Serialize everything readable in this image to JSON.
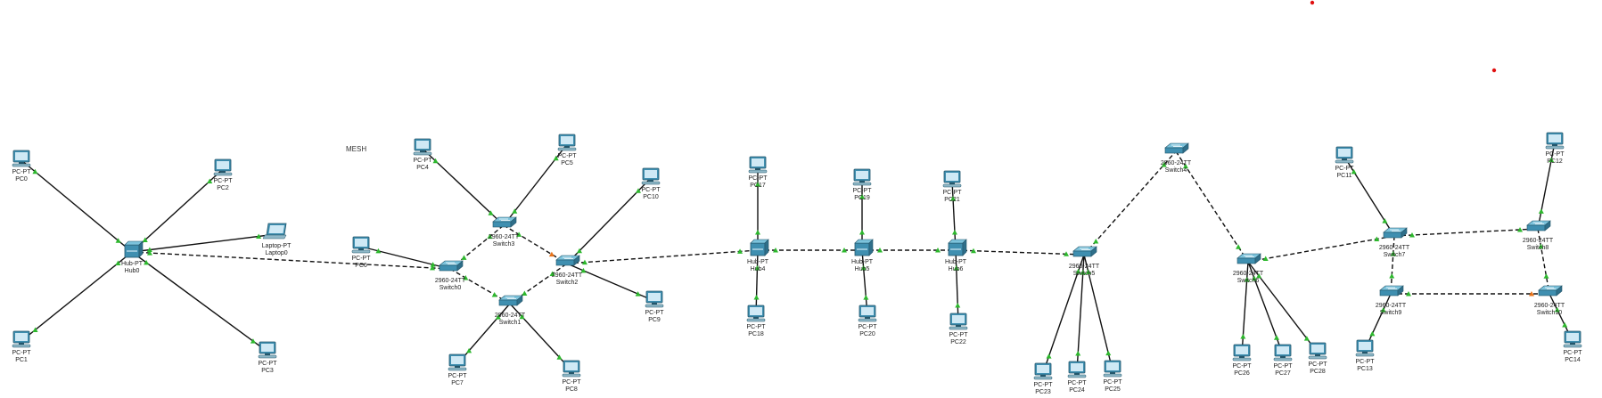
{
  "canvas_label": "MESH",
  "colors": {
    "link": "#111111",
    "port_up": "#2db82d",
    "port_down": "#e8731a",
    "marker": "#e01010",
    "device_body": "#3f8fb0",
    "device_top": "#7cc3dc",
    "screen": "#cfe9f5"
  },
  "devices": [
    {
      "id": "PC0",
      "type": "pc",
      "model": "PC-PT",
      "name": "PC0"
    },
    {
      "id": "PC1",
      "type": "pc",
      "model": "PC-PT",
      "name": "PC1"
    },
    {
      "id": "PC2",
      "type": "pc",
      "model": "PC-PT",
      "name": "PC2"
    },
    {
      "id": "PC3",
      "type": "pc",
      "model": "PC-PT",
      "name": "PC3"
    },
    {
      "id": "Laptop0",
      "type": "laptop",
      "model": "Laptop-PT",
      "name": "Laptop0"
    },
    {
      "id": "Hub0",
      "type": "hub",
      "model": "Hub-PT",
      "name": "Hub0"
    },
    {
      "id": "PC6",
      "type": "pc",
      "model": "PC-PT",
      "name": "PC6"
    },
    {
      "id": "PC4",
      "type": "pc",
      "model": "PC-PT",
      "name": "PC4"
    },
    {
      "id": "PC5",
      "type": "pc",
      "model": "PC-PT",
      "name": "PC5"
    },
    {
      "id": "PC7",
      "type": "pc",
      "model": "PC-PT",
      "name": "PC7"
    },
    {
      "id": "PC8",
      "type": "pc",
      "model": "PC-PT",
      "name": "PC8"
    },
    {
      "id": "PC9",
      "type": "pc",
      "model": "PC-PT",
      "name": "PC9"
    },
    {
      "id": "PC10",
      "type": "pc",
      "model": "PC-PT",
      "name": "PC10"
    },
    {
      "id": "Switch0",
      "type": "switch",
      "model": "2960-24TT",
      "name": "Switch0"
    },
    {
      "id": "Switch1",
      "type": "switch",
      "model": "2960-24TT",
      "name": "Switch1"
    },
    {
      "id": "Switch2",
      "type": "switch",
      "model": "2960-24TT",
      "name": "Switch2"
    },
    {
      "id": "Switch3",
      "type": "switch",
      "model": "2960-24TT",
      "name": "Switch3"
    },
    {
      "id": "PC17",
      "type": "pc",
      "model": "PC-PT",
      "name": "PC17"
    },
    {
      "id": "PC18",
      "type": "pc",
      "model": "PC-PT",
      "name": "PC18"
    },
    {
      "id": "Hub4",
      "type": "hub",
      "model": "Hub-PT",
      "name": "Hub4"
    },
    {
      "id": "PC19",
      "type": "pc",
      "model": "PC-PT",
      "name": "PC19"
    },
    {
      "id": "PC20",
      "type": "pc",
      "model": "PC-PT",
      "name": "PC20"
    },
    {
      "id": "Hub5",
      "type": "hub",
      "model": "Hub-PT",
      "name": "Hub5"
    },
    {
      "id": "PC21",
      "type": "pc",
      "model": "PC-PT",
      "name": "PC21"
    },
    {
      "id": "PC22",
      "type": "pc",
      "model": "PC-PT",
      "name": "PC22"
    },
    {
      "id": "Hub6",
      "type": "hub",
      "model": "Hub-PT",
      "name": "Hub6"
    },
    {
      "id": "Switch4",
      "type": "switch",
      "model": "2960-24TT",
      "name": "Switch4"
    },
    {
      "id": "Switch5",
      "type": "switch",
      "model": "2960-24TT",
      "name": "Switch5"
    },
    {
      "id": "PC23",
      "type": "pc",
      "model": "PC-PT",
      "name": "PC23"
    },
    {
      "id": "PC24",
      "type": "pc",
      "model": "PC-PT",
      "name": "PC24"
    },
    {
      "id": "PC25",
      "type": "pc",
      "model": "PC-PT",
      "name": "PC25"
    },
    {
      "id": "Switch6",
      "type": "switch",
      "model": "2960-24TT",
      "name": "Switch6"
    },
    {
      "id": "PC26",
      "type": "pc",
      "model": "PC-PT",
      "name": "PC26"
    },
    {
      "id": "PC27",
      "type": "pc",
      "model": "PC-PT",
      "name": "PC27"
    },
    {
      "id": "PC28",
      "type": "pc",
      "model": "PC-PT",
      "name": "PC28"
    },
    {
      "id": "PC11",
      "type": "pc",
      "model": "PC-PT",
      "name": "PC11"
    },
    {
      "id": "Switch7",
      "type": "switch",
      "model": "2960-24TT",
      "name": "Switch7"
    },
    {
      "id": "Switch8",
      "type": "switch",
      "model": "2960-24TT",
      "name": "Switch8"
    },
    {
      "id": "Switch9",
      "type": "switch",
      "model": "2960-24TT",
      "name": "Switch9"
    },
    {
      "id": "Switch10",
      "type": "switch",
      "model": "2960-24TT",
      "name": "Switch10"
    },
    {
      "id": "PC12",
      "type": "pc",
      "model": "PC-PT",
      "name": "PC12"
    },
    {
      "id": "PC13",
      "type": "pc",
      "model": "PC-PT",
      "name": "PC13"
    },
    {
      "id": "PC14",
      "type": "pc",
      "model": "PC-PT",
      "name": "PC14"
    }
  ],
  "links": [
    {
      "a": "PC0",
      "b": "Hub0",
      "style": "solid"
    },
    {
      "a": "PC1",
      "b": "Hub0",
      "style": "solid"
    },
    {
      "a": "PC2",
      "b": "Hub0",
      "style": "solid"
    },
    {
      "a": "PC3",
      "b": "Hub0",
      "style": "solid"
    },
    {
      "a": "Laptop0",
      "b": "Hub0",
      "style": "solid"
    },
    {
      "a": "Hub0",
      "b": "Switch0",
      "style": "dashed"
    },
    {
      "a": "PC6",
      "b": "Switch0",
      "style": "solid"
    },
    {
      "a": "Switch0",
      "b": "Switch3",
      "style": "dashed"
    },
    {
      "a": "Switch0",
      "b": "Switch1",
      "style": "dashed"
    },
    {
      "a": "Switch3",
      "b": "Switch2",
      "style": "dashed",
      "down": true
    },
    {
      "a": "Switch1",
      "b": "Switch2",
      "style": "dashed"
    },
    {
      "a": "PC4",
      "b": "Switch3",
      "style": "solid"
    },
    {
      "a": "PC5",
      "b": "Switch3",
      "style": "solid"
    },
    {
      "a": "PC7",
      "b": "Switch1",
      "style": "solid"
    },
    {
      "a": "PC8",
      "b": "Switch1",
      "style": "solid"
    },
    {
      "a": "PC10",
      "b": "Switch2",
      "style": "solid"
    },
    {
      "a": "PC9",
      "b": "Switch2",
      "style": "solid"
    },
    {
      "a": "Switch2",
      "b": "Hub4",
      "style": "dashed"
    },
    {
      "a": "PC17",
      "b": "Hub4",
      "style": "solid"
    },
    {
      "a": "PC18",
      "b": "Hub4",
      "style": "solid"
    },
    {
      "a": "Hub4",
      "b": "Hub5",
      "style": "dashed"
    },
    {
      "a": "PC19",
      "b": "Hub5",
      "style": "solid"
    },
    {
      "a": "PC20",
      "b": "Hub5",
      "style": "solid"
    },
    {
      "a": "Hub5",
      "b": "Hub6",
      "style": "dashed"
    },
    {
      "a": "PC21",
      "b": "Hub6",
      "style": "solid"
    },
    {
      "a": "PC22",
      "b": "Hub6",
      "style": "solid"
    },
    {
      "a": "Hub6",
      "b": "Switch5",
      "style": "dashed"
    },
    {
      "a": "Switch5",
      "b": "Switch4",
      "style": "dashed"
    },
    {
      "a": "Switch4",
      "b": "Switch6",
      "style": "dashed"
    },
    {
      "a": "PC23",
      "b": "Switch5",
      "style": "solid"
    },
    {
      "a": "PC24",
      "b": "Switch5",
      "style": "solid"
    },
    {
      "a": "PC25",
      "b": "Switch5",
      "style": "solid"
    },
    {
      "a": "Switch6",
      "b": "Switch7",
      "style": "dashed"
    },
    {
      "a": "PC26",
      "b": "Switch6",
      "style": "solid"
    },
    {
      "a": "PC27",
      "b": "Switch6",
      "style": "solid"
    },
    {
      "a": "PC28",
      "b": "Switch6",
      "style": "solid"
    },
    {
      "a": "PC11",
      "b": "Switch7",
      "style": "solid"
    },
    {
      "a": "Switch7",
      "b": "Switch8",
      "style": "dashed"
    },
    {
      "a": "Switch7",
      "b": "Switch9",
      "style": "dashed"
    },
    {
      "a": "Switch8",
      "b": "Switch10",
      "style": "dashed"
    },
    {
      "a": "Switch9",
      "b": "Switch10",
      "style": "dashed",
      "down": true
    },
    {
      "a": "PC12",
      "b": "Switch8",
      "style": "solid"
    },
    {
      "a": "PC13",
      "b": "Switch9",
      "style": "solid"
    },
    {
      "a": "PC14",
      "b": "Switch10",
      "style": "solid"
    }
  ],
  "markers": [
    "red-dot",
    "red-dot"
  ]
}
